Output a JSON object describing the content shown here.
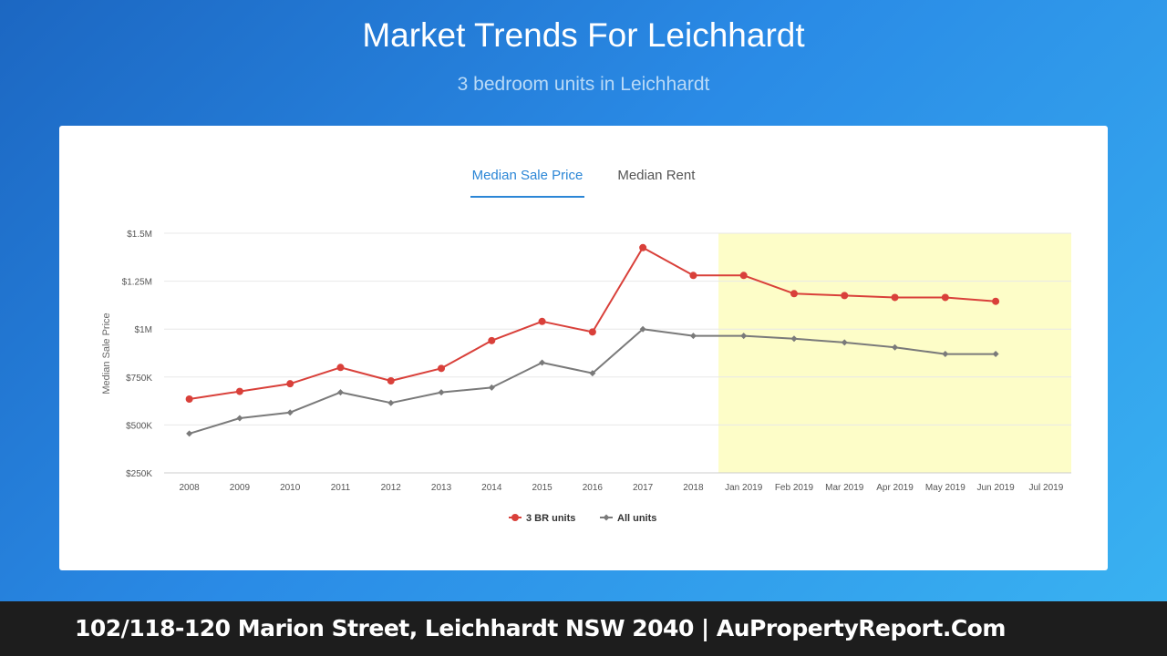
{
  "header": {
    "title": "Market Trends For Leichhardt",
    "subtitle": "3 bedroom units in Leichhardt"
  },
  "tabs": [
    {
      "label": "Median Sale Price",
      "active": true
    },
    {
      "label": "Median Rent",
      "active": false
    }
  ],
  "footer": {
    "text": "102/118-120 Marion Street, Leichhardt NSW 2040 | AuPropertyReport.Com"
  },
  "colors": {
    "series_3br": "#d9403a",
    "series_all": "#7a7a7a",
    "forecast_band": "#fdfdc8",
    "active_tab": "#2b86d6"
  },
  "chart_data": {
    "type": "line",
    "title": "",
    "xlabel": "",
    "ylabel": "Median Sale Price",
    "categories": [
      "2008",
      "2009",
      "2010",
      "2011",
      "2012",
      "2013",
      "2014",
      "2015",
      "2016",
      "2017",
      "2018",
      "Jan 2019",
      "Feb 2019",
      "Mar 2019",
      "Apr 2019",
      "May 2019",
      "Jun 2019",
      "Jul 2019"
    ],
    "ylim": [
      250000,
      1500000
    ],
    "yticks": [
      250000,
      500000,
      750000,
      1000000,
      1250000,
      1500000
    ],
    "ytick_labels": [
      "$250K",
      "$500K",
      "$750K",
      "$1M",
      "$1.25M",
      "$1.5M"
    ],
    "highlight_range": [
      "Jan 2019",
      "Jul 2019"
    ],
    "grid": true,
    "legend_position": "bottom",
    "series": [
      {
        "name": "3 BR units",
        "marker": "circle",
        "values": [
          635000,
          675000,
          715000,
          800000,
          730000,
          795000,
          940000,
          1040000,
          985000,
          1425000,
          1280000,
          1280000,
          1185000,
          1175000,
          1165000,
          1165000,
          1145000,
          null
        ]
      },
      {
        "name": "All units",
        "marker": "diamond",
        "values": [
          455000,
          535000,
          565000,
          670000,
          615000,
          670000,
          695000,
          825000,
          770000,
          1000000,
          965000,
          965000,
          950000,
          930000,
          905000,
          870000,
          870000,
          null
        ]
      }
    ]
  }
}
